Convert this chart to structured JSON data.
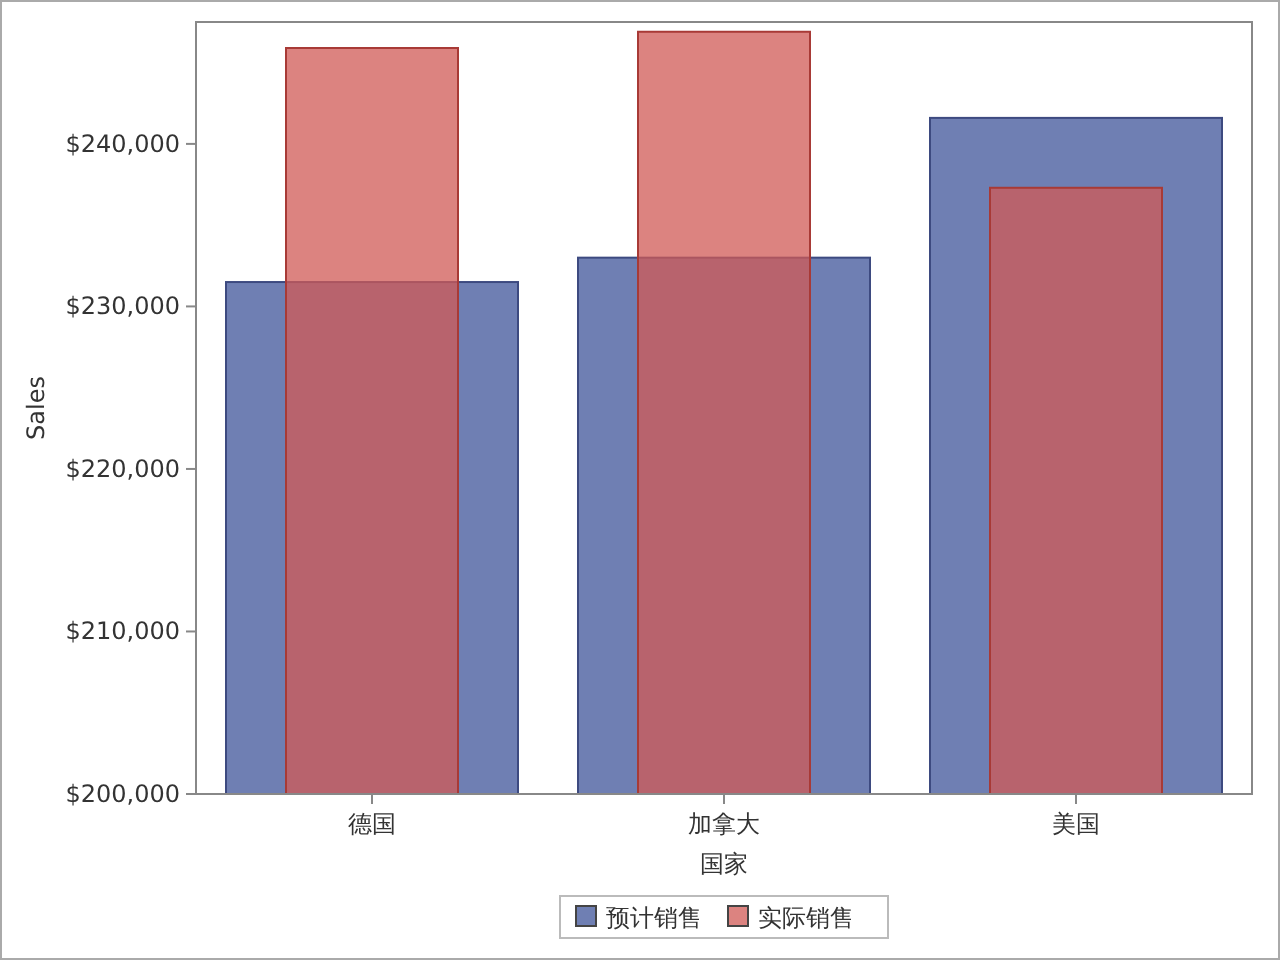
{
  "chart_data": {
    "type": "bar",
    "xlabel": "国家",
    "ylabel": "Sales",
    "categories": [
      "德国",
      "加拿大",
      "美国"
    ],
    "series": [
      {
        "name": "预计销售",
        "color": "#6f7fb3",
        "values": [
          231500,
          233000,
          241600
        ]
      },
      {
        "name": "实际销售",
        "color": "#d05a55",
        "values": [
          245900,
          246900,
          237300
        ]
      }
    ],
    "ylim": [
      200000,
      247500
    ],
    "yticks": [
      {
        "value": 200000,
        "label": "$200,000"
      },
      {
        "value": 210000,
        "label": "$210,000"
      },
      {
        "value": 220000,
        "label": "$220,000"
      },
      {
        "value": 230000,
        "label": "$230,000"
      },
      {
        "value": 240000,
        "label": "$240,000"
      }
    ],
    "grid": false,
    "legend": "bottom"
  }
}
